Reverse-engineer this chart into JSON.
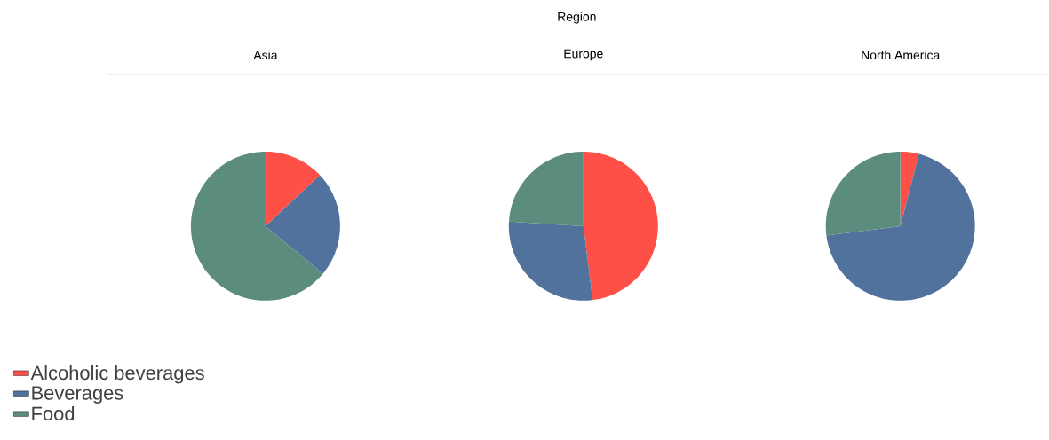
{
  "chart_data": {
    "type": "pie",
    "title": "Region",
    "categories": [
      "Alcoholic beverages",
      "Beverages",
      "Food"
    ],
    "colors": [
      "#fe5046",
      "#52729e",
      "#5b8c7e"
    ],
    "legend": "bottom left",
    "series": [
      {
        "name": "Asia",
        "values": [
          13,
          23,
          64
        ]
      },
      {
        "name": "Europe",
        "values": [
          48,
          28,
          24
        ]
      },
      {
        "name": "North America",
        "values": [
          4,
          69,
          27
        ]
      }
    ]
  }
}
